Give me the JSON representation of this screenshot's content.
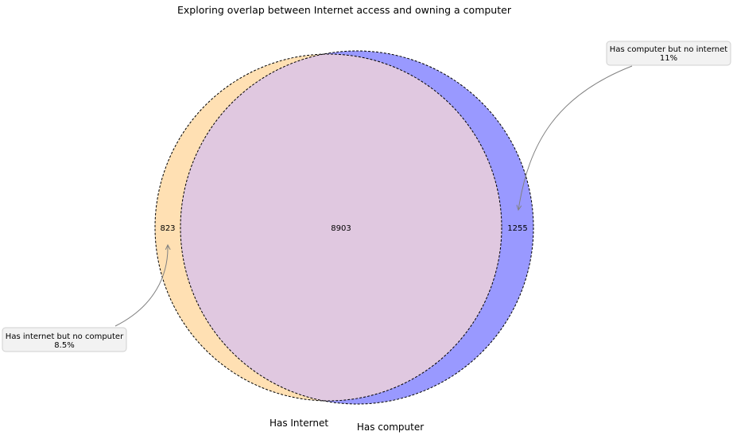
{
  "chart_data": {
    "type": "venn",
    "title": "Exploring overlap between Internet access and owning a computer",
    "sets": [
      {
        "name": "Has Internet",
        "color": "#ffe0b3"
      },
      {
        "name": "Has computer",
        "color": "#9999ff"
      }
    ],
    "regions": {
      "internet_only": 823,
      "overlap": 8903,
      "computer_only": 1255
    },
    "region_labels": {
      "internet_only": "823",
      "overlap": "8903",
      "computer_only": "1255"
    },
    "overlap_color": "#e0c8e0",
    "annotations": [
      {
        "target": "internet_only",
        "line1": "Has internet but no computer",
        "line2": "8.5%"
      },
      {
        "target": "computer_only",
        "line1": "Has computer but no internet",
        "line2": "11%"
      }
    ]
  }
}
